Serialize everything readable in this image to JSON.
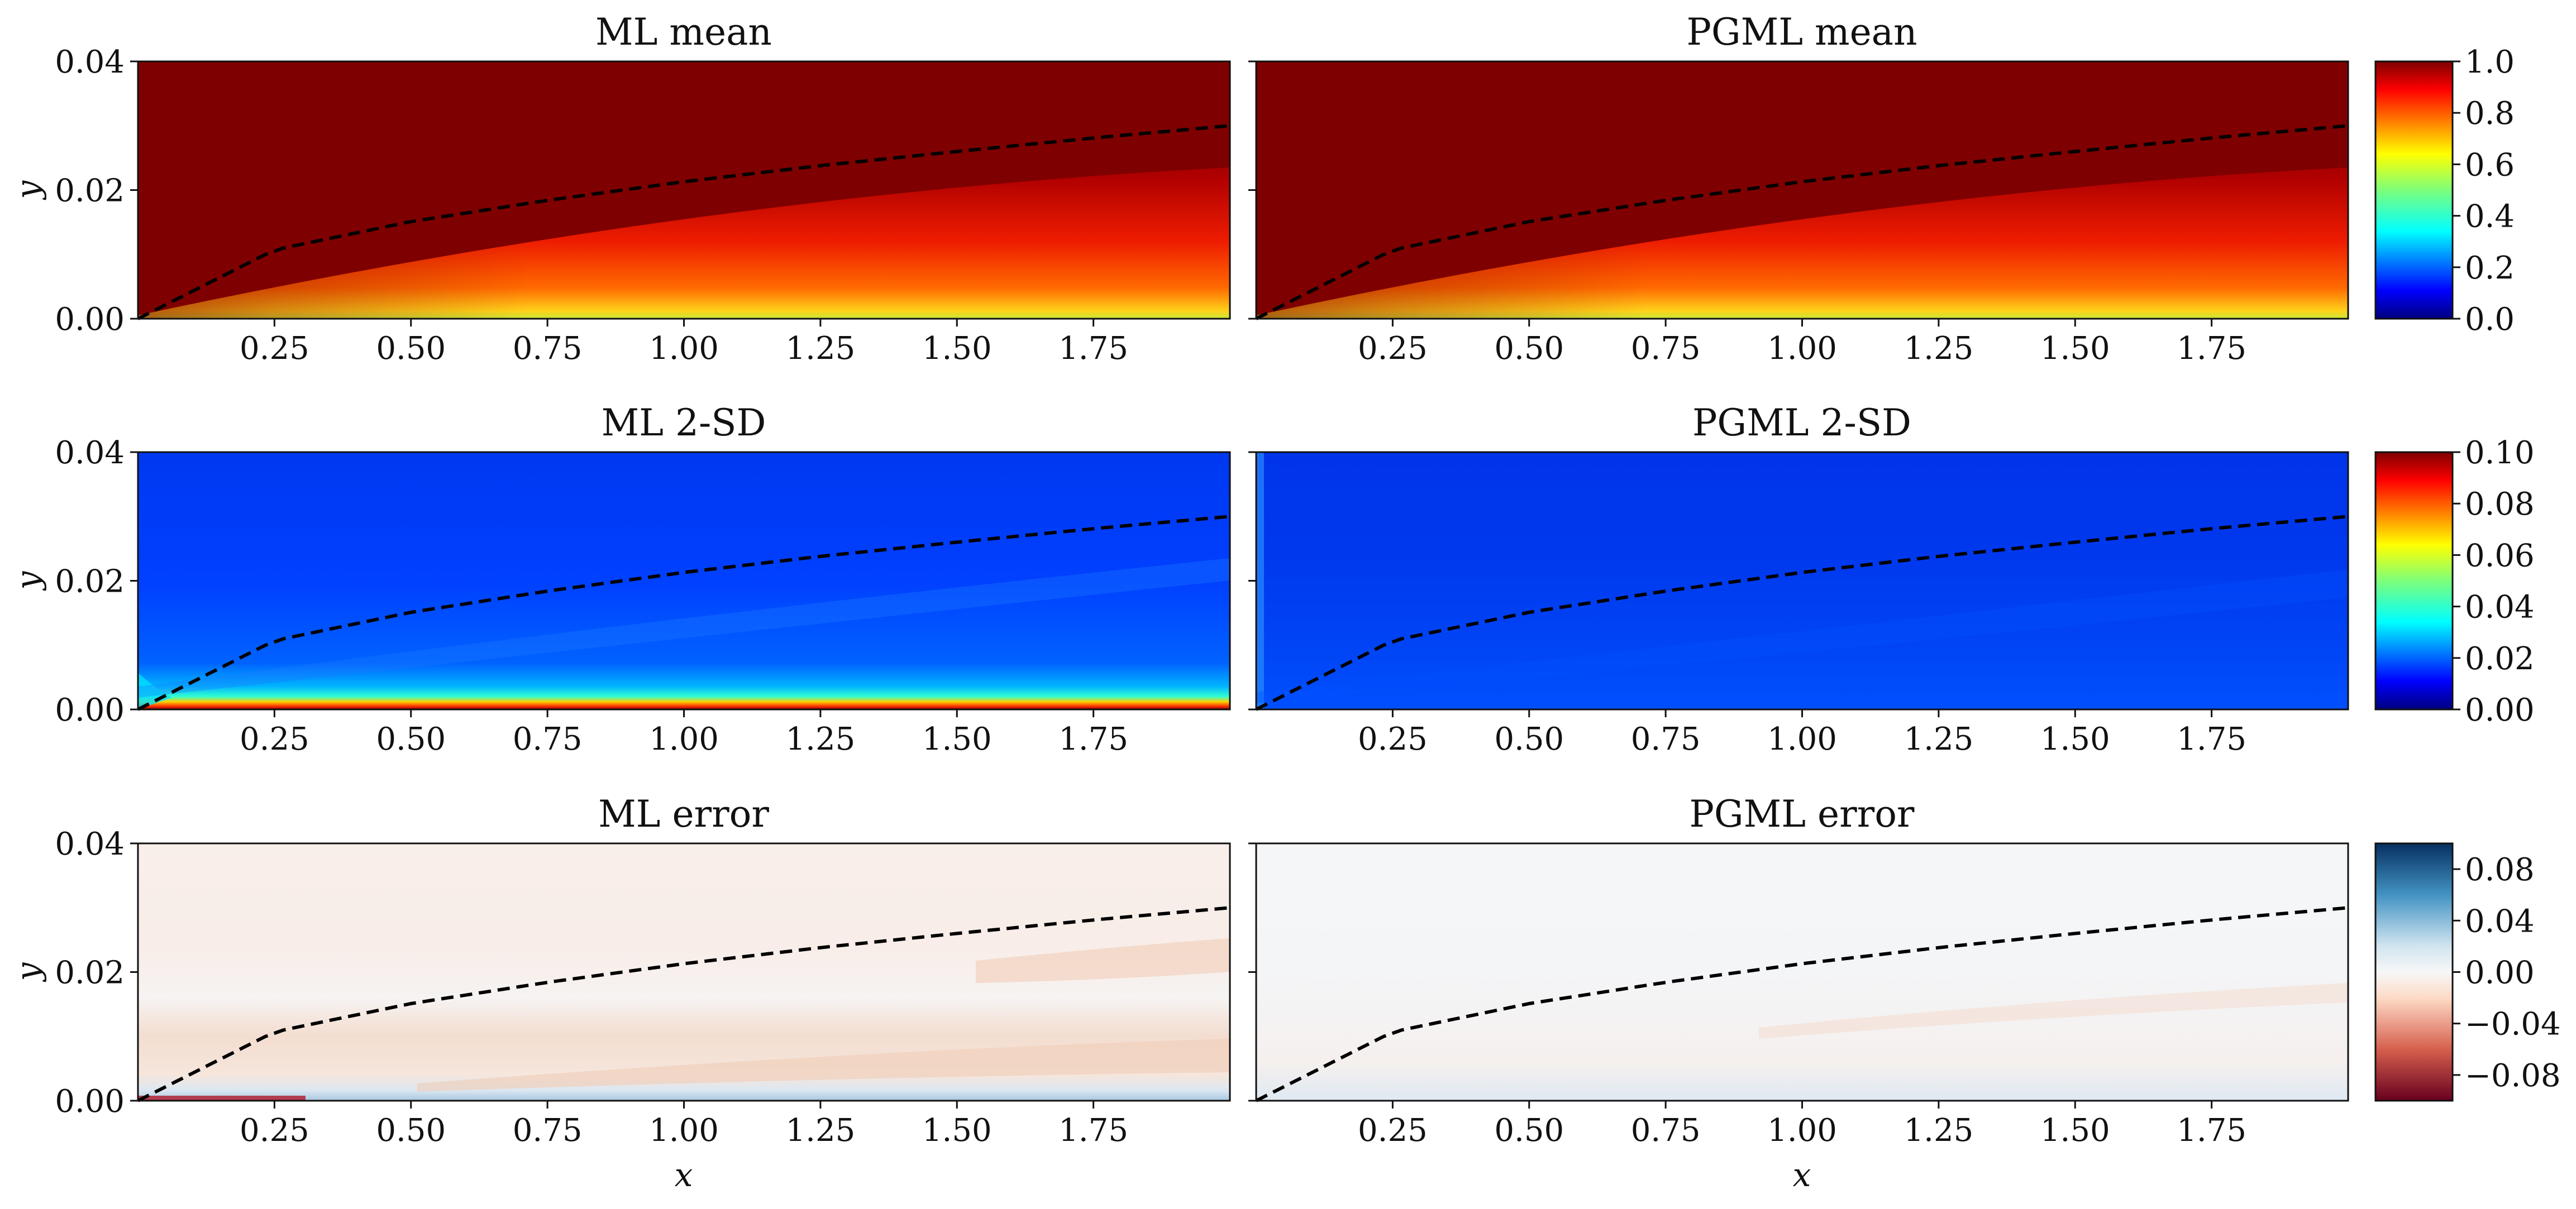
{
  "figure": {
    "colors": {
      "dashed_line": "#000000",
      "frame": "#111111"
    }
  },
  "chart_data": [
    {
      "type": "heatmap",
      "title": "ML mean",
      "xlabel": "",
      "ylabel": "y",
      "xlim": [
        0.0,
        2.0
      ],
      "ylim": [
        0.0,
        0.04
      ],
      "x_ticks": [
        0.25,
        0.5,
        0.75,
        1.0,
        1.25,
        1.5,
        1.75
      ],
      "x_tick_labels": [
        "0.25",
        "0.50",
        "0.75",
        "1.00",
        "1.25",
        "1.50",
        "1.75"
      ],
      "y_tick_labels": [
        "0.00",
        "0.02",
        "0.04"
      ],
      "colormap": "jet",
      "value_range": [
        0.0,
        1.0
      ],
      "boundary_layer_curve": {
        "style": "dashed",
        "points": [
          [
            0.0,
            0.0
          ],
          [
            0.25,
            0.0107
          ],
          [
            0.5,
            0.0151
          ],
          [
            0.75,
            0.0184
          ],
          [
            1.0,
            0.0213
          ],
          [
            1.25,
            0.0238
          ],
          [
            1.5,
            0.026
          ],
          [
            1.75,
            0.0281
          ],
          [
            2.0,
            0.03
          ]
        ]
      }
    },
    {
      "type": "heatmap",
      "title": "PGML mean",
      "xlabel": "",
      "ylabel": "",
      "xlim": [
        0.0,
        2.0
      ],
      "ylim": [
        0.0,
        0.04
      ],
      "x_ticks": [
        0.25,
        0.5,
        0.75,
        1.0,
        1.25,
        1.5,
        1.75
      ],
      "x_tick_labels": [
        "0.25",
        "0.50",
        "0.75",
        "1.00",
        "1.25",
        "1.50",
        "1.75"
      ],
      "colormap": "jet",
      "value_range": [
        0.0,
        1.0
      ],
      "colorbar": {
        "ticks": [
          0.0,
          0.2,
          0.4,
          0.6,
          0.8,
          1.0
        ],
        "tick_labels": [
          "0.0",
          "0.2",
          "0.4",
          "0.6",
          "0.8",
          "1.0"
        ]
      },
      "boundary_layer_curve": {
        "style": "dashed",
        "points": [
          [
            0.0,
            0.0
          ],
          [
            0.25,
            0.0107
          ],
          [
            0.5,
            0.0151
          ],
          [
            0.75,
            0.0184
          ],
          [
            1.0,
            0.0213
          ],
          [
            1.25,
            0.0238
          ],
          [
            1.5,
            0.026
          ],
          [
            1.75,
            0.0281
          ],
          [
            2.0,
            0.03
          ]
        ]
      }
    },
    {
      "type": "heatmap",
      "title": "ML 2-SD",
      "xlabel": "",
      "ylabel": "y",
      "xlim": [
        0.0,
        2.0
      ],
      "ylim": [
        0.0,
        0.04
      ],
      "x_ticks": [
        0.25,
        0.5,
        0.75,
        1.0,
        1.25,
        1.5,
        1.75
      ],
      "x_tick_labels": [
        "0.25",
        "0.50",
        "0.75",
        "1.00",
        "1.25",
        "1.50",
        "1.75"
      ],
      "y_tick_labels": [
        "0.00",
        "0.02",
        "0.04"
      ],
      "colormap": "jet",
      "value_range": [
        0.0,
        0.1
      ],
      "boundary_layer_curve": {
        "style": "dashed",
        "points": [
          [
            0.0,
            0.0
          ],
          [
            0.25,
            0.0107
          ],
          [
            0.5,
            0.0151
          ],
          [
            0.75,
            0.0184
          ],
          [
            1.0,
            0.0213
          ],
          [
            1.25,
            0.0238
          ],
          [
            1.5,
            0.026
          ],
          [
            1.75,
            0.0281
          ],
          [
            2.0,
            0.03
          ]
        ]
      }
    },
    {
      "type": "heatmap",
      "title": "PGML 2-SD",
      "xlabel": "",
      "ylabel": "",
      "xlim": [
        0.0,
        2.0
      ],
      "ylim": [
        0.0,
        0.04
      ],
      "x_ticks": [
        0.25,
        0.5,
        0.75,
        1.0,
        1.25,
        1.5,
        1.75
      ],
      "x_tick_labels": [
        "0.25",
        "0.50",
        "0.75",
        "1.00",
        "1.25",
        "1.50",
        "1.75"
      ],
      "colormap": "jet",
      "value_range": [
        0.0,
        0.1
      ],
      "colorbar": {
        "ticks": [
          0.0,
          0.02,
          0.04,
          0.06,
          0.08,
          0.1
        ],
        "tick_labels": [
          "0.00",
          "0.02",
          "0.04",
          "0.06",
          "0.08",
          "0.10"
        ]
      },
      "boundary_layer_curve": {
        "style": "dashed",
        "points": [
          [
            0.0,
            0.0
          ],
          [
            0.25,
            0.0107
          ],
          [
            0.5,
            0.0151
          ],
          [
            0.75,
            0.0184
          ],
          [
            1.0,
            0.0213
          ],
          [
            1.25,
            0.0238
          ],
          [
            1.5,
            0.026
          ],
          [
            1.75,
            0.0281
          ],
          [
            2.0,
            0.03
          ]
        ]
      }
    },
    {
      "type": "heatmap",
      "title": "ML error",
      "xlabel": "x",
      "ylabel": "y",
      "xlim": [
        0.0,
        2.0
      ],
      "ylim": [
        0.0,
        0.04
      ],
      "x_ticks": [
        0.25,
        0.5,
        0.75,
        1.0,
        1.25,
        1.5,
        1.75
      ],
      "x_tick_labels": [
        "0.25",
        "0.50",
        "0.75",
        "1.00",
        "1.25",
        "1.50",
        "1.75"
      ],
      "y_tick_labels": [
        "0.00",
        "0.02",
        "0.04"
      ],
      "colormap": "RdBu",
      "value_range": [
        -0.1,
        0.1
      ],
      "boundary_layer_curve": {
        "style": "dashed",
        "points": [
          [
            0.0,
            0.0
          ],
          [
            0.25,
            0.0107
          ],
          [
            0.5,
            0.0151
          ],
          [
            0.75,
            0.0184
          ],
          [
            1.0,
            0.0213
          ],
          [
            1.25,
            0.0238
          ],
          [
            1.5,
            0.026
          ],
          [
            1.75,
            0.0281
          ],
          [
            2.0,
            0.03
          ]
        ]
      }
    },
    {
      "type": "heatmap",
      "title": "PGML error",
      "xlabel": "x",
      "ylabel": "",
      "xlim": [
        0.0,
        2.0
      ],
      "ylim": [
        0.0,
        0.04
      ],
      "x_ticks": [
        0.25,
        0.5,
        0.75,
        1.0,
        1.25,
        1.5,
        1.75
      ],
      "x_tick_labels": [
        "0.25",
        "0.50",
        "0.75",
        "1.00",
        "1.25",
        "1.50",
        "1.75"
      ],
      "colormap": "RdBu",
      "value_range": [
        -0.1,
        0.1
      ],
      "colorbar": {
        "ticks": [
          -0.08,
          -0.04,
          0.0,
          0.04,
          0.08
        ],
        "tick_labels": [
          "−0.08",
          "−0.04",
          "0.00",
          "0.04",
          "0.08"
        ]
      },
      "boundary_layer_curve": {
        "style": "dashed",
        "points": [
          [
            0.0,
            0.0
          ],
          [
            0.25,
            0.0107
          ],
          [
            0.5,
            0.0151
          ],
          [
            0.75,
            0.0184
          ],
          [
            1.0,
            0.0213
          ],
          [
            1.25,
            0.0238
          ],
          [
            1.5,
            0.026
          ],
          [
            1.75,
            0.0281
          ],
          [
            2.0,
            0.03
          ]
        ]
      }
    }
  ]
}
